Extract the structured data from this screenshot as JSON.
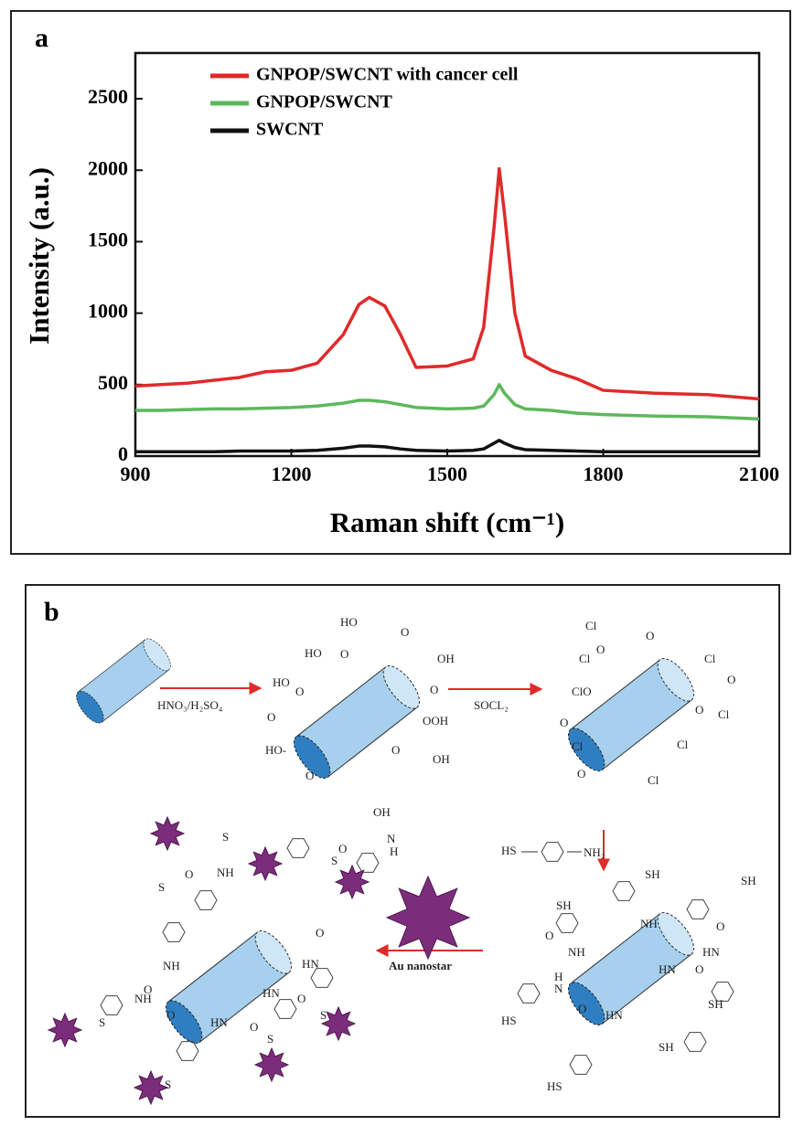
{
  "chart_data": {
    "type": "line",
    "panel": "a",
    "x_label": "Raman shift (cm⁻¹)",
    "y_label": "Intensity (a.u.)",
    "xlim": [
      900,
      2100
    ],
    "ylim": [
      0,
      2820
    ],
    "xticks": [
      900,
      1200,
      1500,
      1800,
      2100
    ],
    "yticks": [
      0,
      500,
      1000,
      1500,
      2000,
      2500
    ],
    "grid": false,
    "legend": "upper left",
    "x": [
      900,
      950,
      1000,
      1050,
      1100,
      1150,
      1200,
      1250,
      1300,
      1330,
      1350,
      1380,
      1410,
      1440,
      1500,
      1550,
      1570,
      1590,
      1600,
      1610,
      1630,
      1650,
      1700,
      1750,
      1800,
      1900,
      2000,
      2100
    ],
    "series": [
      {
        "name": "GNPOP/SWCNT with cancer cell",
        "color": "#e02a2a",
        "values": [
          490,
          500,
          510,
          530,
          550,
          590,
          600,
          650,
          850,
          1060,
          1110,
          1050,
          850,
          620,
          630,
          680,
          900,
          1600,
          2010,
          1700,
          1000,
          700,
          600,
          540,
          460,
          440,
          430,
          400
        ]
      },
      {
        "name": "GNPOP/SWCNT",
        "color": "#5cb85c",
        "values": [
          320,
          320,
          325,
          330,
          330,
          335,
          340,
          350,
          370,
          390,
          390,
          380,
          360,
          340,
          330,
          335,
          350,
          430,
          500,
          440,
          360,
          330,
          320,
          300,
          290,
          280,
          275,
          260
        ]
      },
      {
        "name": "SWCNT",
        "color": "#111111",
        "values": [
          30,
          30,
          30,
          30,
          35,
          35,
          35,
          40,
          55,
          70,
          70,
          65,
          50,
          40,
          35,
          40,
          50,
          90,
          110,
          90,
          60,
          45,
          40,
          35,
          30,
          30,
          30,
          30
        ]
      }
    ]
  },
  "diagram": {
    "panel": "b",
    "reagents": [
      "HNO₃/H₂SO₄",
      "SOCL₂",
      "HS",
      "NH₂",
      "Au nanostar"
    ],
    "carboxyl_labels": [
      "HO",
      "O",
      "HO",
      "O",
      "OH",
      "HO",
      "O",
      "O",
      "O",
      "OOH",
      "HO-",
      "O",
      "OH",
      "O",
      "OH"
    ],
    "chloride_labels": [
      "Cl",
      "O",
      "O",
      "Cl",
      "Cl",
      "ClO",
      "O",
      "O",
      "O",
      "Cl",
      "Cl",
      "Cl",
      "O",
      "Cl"
    ],
    "thiol_labels": [
      "SH",
      "SH",
      "SH",
      "NH",
      "O",
      "NH",
      "O",
      "HN",
      "HN",
      "H",
      "N",
      "O",
      "HS",
      "SH",
      "HN",
      "O",
      "SH",
      "HS"
    ],
    "nanostar_labels": [
      "S",
      "S",
      "N",
      "H",
      "O",
      "O",
      "NH",
      "S",
      "NH",
      "O",
      "HN",
      "O",
      "NH",
      "HN",
      "O",
      "O",
      "HN",
      "O",
      "S",
      "S",
      "S",
      "S"
    ]
  }
}
